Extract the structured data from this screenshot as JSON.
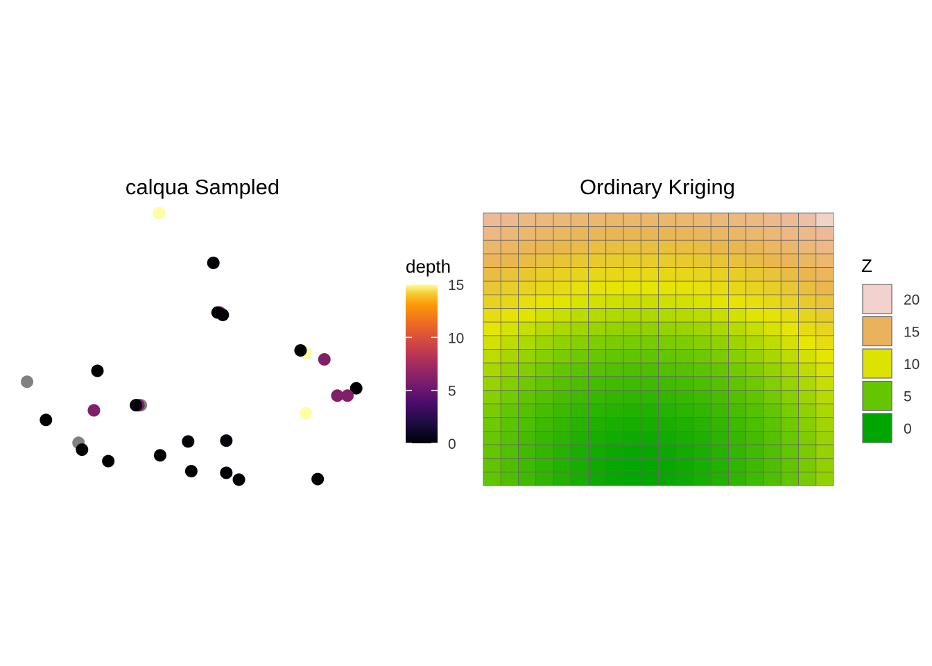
{
  "chart_data": [
    {
      "type": "scatter",
      "title": "calqua Sampled",
      "xlabel": "",
      "ylabel": "",
      "axes_visible": false,
      "color_legend": {
        "title": "depth",
        "type": "continuous",
        "palette": "inferno",
        "range": [
          0,
          15
        ],
        "ticks": [
          0,
          5,
          10,
          15
        ]
      },
      "na_color": "#808080",
      "x_range": [
        0,
        100
      ],
      "y_range": [
        0,
        100
      ],
      "points": [
        {
          "x": 37.7,
          "y": 100.0,
          "depth": 15
        },
        {
          "x": 53.2,
          "y": 81.7,
          "depth": 0
        },
        {
          "x": 55.0,
          "y": 63.5,
          "depth": 6
        },
        {
          "x": 54.4,
          "y": 63.5,
          "depth": 0
        },
        {
          "x": 55.9,
          "y": 62.6,
          "depth": 0
        },
        {
          "x": 79.6,
          "y": 48.7,
          "depth": 15
        },
        {
          "x": 78.1,
          "y": 49.6,
          "depth": 0
        },
        {
          "x": 84.9,
          "y": 46.3,
          "depth": 6
        },
        {
          "x": 20.1,
          "y": 42.1,
          "depth": 0
        },
        {
          "x": 0.0,
          "y": 38.1,
          "depth": null
        },
        {
          "x": 94.0,
          "y": 35.7,
          "depth": 0
        },
        {
          "x": 88.6,
          "y": 33.0,
          "depth": 6
        },
        {
          "x": 91.5,
          "y": 33.0,
          "depth": 6
        },
        {
          "x": 32.5,
          "y": 29.5,
          "depth": null
        },
        {
          "x": 31.8,
          "y": 29.5,
          "depth": 6
        },
        {
          "x": 31.1,
          "y": 29.5,
          "depth": 0
        },
        {
          "x": 19.1,
          "y": 27.6,
          "depth": 6
        },
        {
          "x": 79.6,
          "y": 26.5,
          "depth": 15
        },
        {
          "x": 5.4,
          "y": 24.1,
          "depth": 0
        },
        {
          "x": 56.9,
          "y": 16.5,
          "depth": 0
        },
        {
          "x": 46.0,
          "y": 16.2,
          "depth": 0
        },
        {
          "x": 14.7,
          "y": 15.7,
          "depth": null
        },
        {
          "x": 15.7,
          "y": 13.2,
          "depth": 0
        },
        {
          "x": 38.0,
          "y": 11.1,
          "depth": 0
        },
        {
          "x": 23.2,
          "y": 9.0,
          "depth": 0
        },
        {
          "x": 46.9,
          "y": 5.3,
          "depth": 0
        },
        {
          "x": 56.9,
          "y": 4.7,
          "depth": 0
        },
        {
          "x": 60.5,
          "y": 2.2,
          "depth": 0
        },
        {
          "x": 83.0,
          "y": 2.4,
          "depth": 0
        }
      ]
    },
    {
      "type": "heatmap",
      "title": "Ordinary Kriging",
      "xlabel": "",
      "ylabel": "",
      "axes_visible": false,
      "grid": {
        "cols": 20,
        "rows": 20,
        "cell_border": "#666666"
      },
      "surface_model": {
        "description": "interpolated Z field, minimum near lower-left-center, maximum at top-right corner",
        "min_value": 0,
        "max_value": 22,
        "min_location": [
          0.45,
          0.05
        ]
      },
      "fill_legend": {
        "title": "Z",
        "type": "binned",
        "items": [
          {
            "label": "20",
            "color": "#F2D2CC"
          },
          {
            "label": "15",
            "color": "#EAB25D"
          },
          {
            "label": "10",
            "color": "#DCE300"
          },
          {
            "label": "5",
            "color": "#63C600"
          },
          {
            "label": "0",
            "color": "#00A600"
          }
        ]
      },
      "terrain_stops": [
        {
          "v": 0,
          "color": "#00A600"
        },
        {
          "v": 5,
          "color": "#63C600"
        },
        {
          "v": 10,
          "color": "#E6E600"
        },
        {
          "v": 15,
          "color": "#EAB64E"
        },
        {
          "v": 20,
          "color": "#EEB99F"
        },
        {
          "v": 22,
          "color": "#F2F2F2"
        }
      ]
    }
  ]
}
